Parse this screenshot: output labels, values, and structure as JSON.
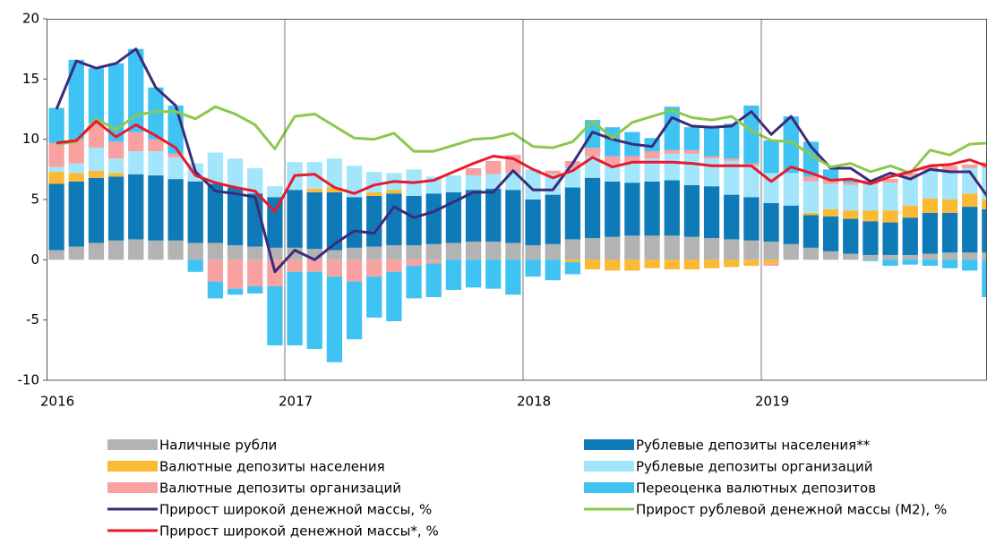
{
  "chart_data": {
    "type": "bar",
    "categories": [
      "2016",
      null,
      null,
      null,
      null,
      null,
      null,
      null,
      null,
      null,
      null,
      null,
      "2017",
      null,
      null,
      null,
      null,
      null,
      null,
      null,
      null,
      null,
      null,
      null,
      "2018",
      null,
      null,
      null,
      null,
      null,
      null,
      null,
      null,
      null,
      null,
      null,
      "2019",
      null,
      null,
      null,
      null,
      null,
      null,
      null,
      null,
      null,
      null,
      null
    ],
    "ylim": [
      -10,
      20
    ],
    "yticks": [
      -10,
      -5,
      0,
      5,
      10,
      15,
      20
    ],
    "series": [
      {
        "name": "Наличные рубли",
        "type": "bar",
        "color": "#b3b3b3",
        "values": [
          0.8,
          1.1,
          1.4,
          1.6,
          1.7,
          1.6,
          1.6,
          1.4,
          1.4,
          1.2,
          1.1,
          1.0,
          1.0,
          0.9,
          0.8,
          1.0,
          1.1,
          1.2,
          1.2,
          1.3,
          1.4,
          1.5,
          1.5,
          1.4,
          1.2,
          1.3,
          1.7,
          1.8,
          1.9,
          2.0,
          2.0,
          2.0,
          1.9,
          1.8,
          1.7,
          1.6,
          1.5,
          1.3,
          1.0,
          0.7,
          0.5,
          0.4,
          0.4,
          0.4,
          0.5,
          0.6,
          0.6,
          0.6
        ]
      },
      {
        "name": "Рублевые депозиты населения**",
        "type": "bar",
        "color": "#0e7bb8",
        "values": [
          5.5,
          5.4,
          5.4,
          5.3,
          5.4,
          5.4,
          5.1,
          5.1,
          4.9,
          4.8,
          4.4,
          4.2,
          4.8,
          4.7,
          4.8,
          4.2,
          4.2,
          4.3,
          4.1,
          4.2,
          4.2,
          4.3,
          4.4,
          4.4,
          3.8,
          4.1,
          4.3,
          5.0,
          4.6,
          4.4,
          4.5,
          4.6,
          4.3,
          4.3,
          3.7,
          3.6,
          3.2,
          3.2,
          2.7,
          2.9,
          2.9,
          2.8,
          2.7,
          3.1,
          3.4,
          3.3,
          3.8,
          3.6
        ]
      },
      {
        "name": "Валютные депозиты населения",
        "type": "bar",
        "color": "#fbb934",
        "values": [
          1.0,
          0.7,
          0.6,
          0.3,
          0,
          0,
          0,
          0,
          0,
          0,
          0,
          0,
          0,
          0.3,
          0.4,
          0,
          0.3,
          0.3,
          0,
          0,
          0,
          0,
          0,
          0,
          0,
          0,
          -0.2,
          -0.8,
          -0.9,
          -0.9,
          -0.7,
          -0.8,
          -0.8,
          -0.7,
          -0.6,
          -0.5,
          -0.3,
          0,
          0.2,
          0.6,
          0.7,
          0.9,
          1.0,
          1.0,
          1.2,
          1.1,
          1.1,
          0.8
        ]
      },
      {
        "name": "Рублевые депозиты организаций",
        "type": "bar",
        "color": "#a3e6fb",
        "values": [
          0.4,
          0.8,
          1.9,
          1.2,
          1.9,
          2.0,
          1.8,
          1.5,
          2.6,
          2.4,
          2.1,
          0.9,
          2.3,
          2.2,
          2.4,
          2.6,
          1.7,
          1.4,
          2.2,
          1.4,
          1.4,
          1.2,
          1.2,
          1.4,
          2.5,
          1.7,
          1.6,
          1.8,
          1.4,
          1.6,
          1.9,
          2.2,
          2.6,
          2.3,
          2.8,
          2.6,
          2.5,
          2.7,
          2.6,
          2.1,
          2.1,
          2.2,
          2.3,
          2.4,
          2.3,
          2.4,
          2.1,
          2.6
        ]
      },
      {
        "name": "Валютные депозиты организаций",
        "type": "bar",
        "color": "#f7a1a1",
        "values": [
          2.0,
          2.0,
          2.0,
          1.4,
          1.6,
          1.0,
          0.3,
          0,
          -1.8,
          -2.4,
          -2.2,
          -2.2,
          -1.0,
          -1.0,
          -1.4,
          -1.8,
          -1.4,
          -1.0,
          -0.5,
          -0.3,
          0,
          0.6,
          1.1,
          1.5,
          0,
          0.3,
          0.6,
          0.7,
          0.7,
          0.6,
          0.6,
          0.3,
          0.3,
          0.2,
          0.2,
          0.2,
          -0.2,
          0,
          0.4,
          0.3,
          0.2,
          0.3,
          0.3,
          0.3,
          0.4,
          0.4,
          0.3,
          0.5
        ]
      },
      {
        "name": "Переоценка валютных депозитов",
        "type": "bar",
        "color": "#3fc3f2",
        "values": [
          2.9,
          6.6,
          4.6,
          6.5,
          6.9,
          4.3,
          4.0,
          -1.0,
          -1.4,
          -0.5,
          -0.6,
          -4.9,
          -6.1,
          -6.4,
          -7.1,
          -4.8,
          -3.4,
          -4.1,
          -2.7,
          -2.8,
          -2.5,
          -2.3,
          -2.4,
          -2.9,
          -1.4,
          -1.7,
          -1.0,
          2.3,
          2.4,
          2.0,
          1.1,
          3.6,
          1.9,
          2.4,
          2.9,
          4.8,
          2.7,
          4.7,
          2.9,
          0.9,
          0.3,
          -0.1,
          -0.5,
          -0.4,
          -0.5,
          -0.7,
          -0.9,
          -3.1
        ]
      },
      {
        "name": "Прирост широкой денежной массы, %",
        "type": "line",
        "color": "#3b2c7a",
        "values": [
          12.5,
          16.5,
          15.9,
          16.3,
          17.5,
          14.3,
          12.8,
          7.3,
          5.7,
          5.5,
          5.2,
          -1.0,
          0.8,
          0,
          1.3,
          2.4,
          2.2,
          4.4,
          3.5,
          4.0,
          4.8,
          5.6,
          5.6,
          7.4,
          5.8,
          5.8,
          8.0,
          10.6,
          10.0,
          9.6,
          9.4,
          11.8,
          11.1,
          11.0,
          11.1,
          12.3,
          10.4,
          11.9,
          9.4,
          7.6,
          7.6,
          6.5,
          7.2,
          6.7,
          7.5,
          7.3,
          7.3,
          5.0
        ]
      },
      {
        "name": "Прирост рублевой денежной массы (М2), %",
        "type": "line",
        "color": "#8cc84e",
        "values": [
          9.6,
          9.8,
          11.7,
          10.8,
          12.0,
          12.3,
          12.3,
          11.7,
          12.7,
          12.1,
          11.2,
          9.2,
          11.9,
          12.1,
          11.1,
          10.1,
          10.0,
          10.5,
          9.0,
          9.0,
          9.5,
          10.0,
          10.1,
          10.5,
          9.4,
          9.3,
          9.8,
          11.5,
          10.1,
          11.4,
          11.9,
          12.4,
          11.8,
          11.6,
          11.9,
          10.7,
          9.9,
          9.8,
          8.7,
          7.7,
          8.0,
          7.3,
          7.8,
          7.2,
          9.1,
          8.7,
          9.6,
          9.7
        ]
      },
      {
        "name": "Прирост широкой денежной массы*, %",
        "type": "line",
        "color": "#e8192c",
        "values": [
          9.7,
          9.9,
          11.5,
          10.2,
          11.2,
          10.3,
          9.3,
          7.0,
          6.4,
          6.0,
          5.7,
          4.0,
          7.0,
          7.1,
          6.0,
          5.5,
          6.2,
          6.5,
          6.4,
          6.6,
          7.3,
          8.0,
          8.6,
          8.4,
          7.5,
          6.8,
          7.4,
          8.5,
          7.7,
          8.1,
          8.1,
          8.1,
          8.0,
          7.8,
          7.8,
          7.8,
          6.5,
          7.7,
          7.2,
          6.6,
          6.7,
          6.3,
          6.9,
          7.3,
          7.8,
          7.9,
          8.3,
          7.7
        ]
      }
    ]
  }
}
